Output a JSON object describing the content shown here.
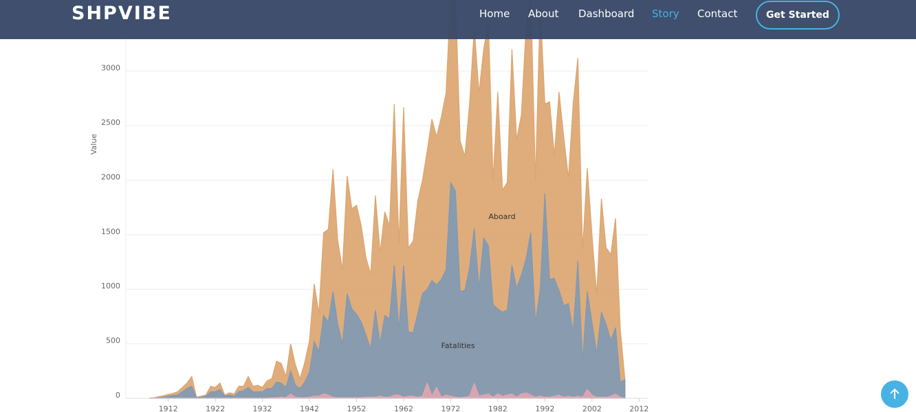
{
  "nav": {
    "brand": "SHPVIBE",
    "links": [
      "Home",
      "About",
      "Dashboard",
      "Story",
      "Contact"
    ],
    "active": 3,
    "button": "Get Started"
  },
  "chart_data": {
    "type": "area",
    "ylabel": "Value",
    "x": [
      1908,
      1909,
      1910,
      1911,
      1912,
      1913,
      1914,
      1915,
      1916,
      1917,
      1918,
      1919,
      1920,
      1921,
      1922,
      1923,
      1924,
      1925,
      1926,
      1927,
      1928,
      1929,
      1930,
      1931,
      1932,
      1933,
      1934,
      1935,
      1936,
      1937,
      1938,
      1939,
      1940,
      1941,
      1942,
      1943,
      1944,
      1945,
      1946,
      1947,
      1948,
      1949,
      1950,
      1951,
      1952,
      1953,
      1954,
      1955,
      1956,
      1957,
      1958,
      1959,
      1960,
      1961,
      1962,
      1963,
      1964,
      1965,
      1966,
      1967,
      1968,
      1969,
      1970,
      1971,
      1972,
      1973,
      1974,
      1975,
      1976,
      1977,
      1978,
      1979,
      1980,
      1981,
      1982,
      1983,
      1984,
      1985,
      1986,
      1987,
      1988,
      1989,
      1990,
      1991,
      1992,
      1993,
      1994,
      1995,
      1996,
      1997,
      1998,
      1999,
      2000,
      2001,
      2002,
      2003,
      2004,
      2005,
      2006,
      2007,
      2008,
      2009
    ],
    "series": [
      {
        "name": "Aboard",
        "color": "#f4b679",
        "values": [
          2,
          5,
          15,
          25,
          35,
          45,
          60,
          100,
          140,
          200,
          10,
          20,
          30,
          110,
          100,
          140,
          30,
          50,
          40,
          110,
          110,
          200,
          110,
          120,
          100,
          160,
          180,
          340,
          320,
          200,
          500,
          310,
          180,
          330,
          530,
          1050,
          780,
          1520,
          1550,
          2100,
          1450,
          1180,
          2040,
          1740,
          1770,
          1580,
          1290,
          1140,
          1860,
          1340,
          1710,
          1580,
          2700,
          1420,
          2670,
          1380,
          1440,
          1810,
          2000,
          2270,
          2560,
          2400,
          2580,
          2800,
          3700,
          3700,
          2360,
          2220,
          2700,
          3400,
          2800,
          3200,
          3450,
          2000,
          2810,
          1910,
          1980,
          3200,
          2370,
          2600,
          3400,
          3700,
          2000,
          3600,
          2700,
          2720,
          2230,
          2810,
          2400,
          2020,
          2700,
          3120,
          1360,
          2110,
          1500,
          950,
          1830,
          1380,
          1320,
          1650,
          640,
          170
        ]
      },
      {
        "name": "Fatalities",
        "color": "#8eaac8",
        "values": [
          1,
          2,
          5,
          10,
          20,
          25,
          30,
          60,
          90,
          110,
          5,
          10,
          20,
          60,
          60,
          80,
          20,
          30,
          20,
          60,
          70,
          100,
          60,
          60,
          60,
          90,
          90,
          150,
          140,
          100,
          250,
          120,
          90,
          150,
          240,
          520,
          430,
          760,
          700,
          980,
          680,
          500,
          960,
          820,
          770,
          700,
          580,
          450,
          810,
          500,
          760,
          730,
          1220,
          630,
          1220,
          610,
          600,
          780,
          960,
          1000,
          1080,
          1040,
          1090,
          1180,
          1980,
          1900,
          980,
          990,
          1200,
          1560,
          1010,
          1470,
          1400,
          860,
          820,
          790,
          810,
          1220,
          1010,
          1130,
          1280,
          1520,
          690,
          1000,
          1880,
          1090,
          1100,
          990,
          850,
          870,
          610,
          1260,
          340,
          980,
          700,
          410,
          790,
          680,
          530,
          650,
          150,
          170
        ]
      },
      {
        "color": "#f8b9c5",
        "values": [
          0,
          0,
          0,
          0,
          0,
          0,
          0,
          0,
          0,
          0,
          0,
          0,
          0,
          0,
          0,
          0,
          0,
          0,
          0,
          0,
          0,
          0,
          0,
          0,
          0,
          0,
          5,
          5,
          10,
          5,
          40,
          10,
          5,
          5,
          10,
          20,
          20,
          40,
          30,
          10,
          5,
          5,
          5,
          5,
          5,
          5,
          10,
          10,
          10,
          20,
          10,
          10,
          30,
          30,
          10,
          20,
          20,
          10,
          20,
          140,
          20,
          100,
          10,
          30,
          20,
          10,
          5,
          10,
          20,
          135,
          20,
          30,
          40,
          10,
          40,
          20,
          30,
          40,
          10,
          40,
          50,
          30,
          10,
          20,
          10,
          10,
          20,
          30,
          10,
          20,
          10,
          20,
          10,
          80,
          30,
          10,
          10,
          10,
          20,
          40,
          10,
          0
        ]
      }
    ],
    "xlim": [
      1903,
      2014
    ],
    "xticks": [
      1912,
      1922,
      1932,
      1942,
      1952,
      1962,
      1972,
      1982,
      1992,
      2002,
      2012
    ],
    "ylim": [
      0,
      3300
    ],
    "yticks": [
      0,
      500,
      1000,
      1500,
      2000,
      2500,
      3000
    ],
    "grid": true
  }
}
